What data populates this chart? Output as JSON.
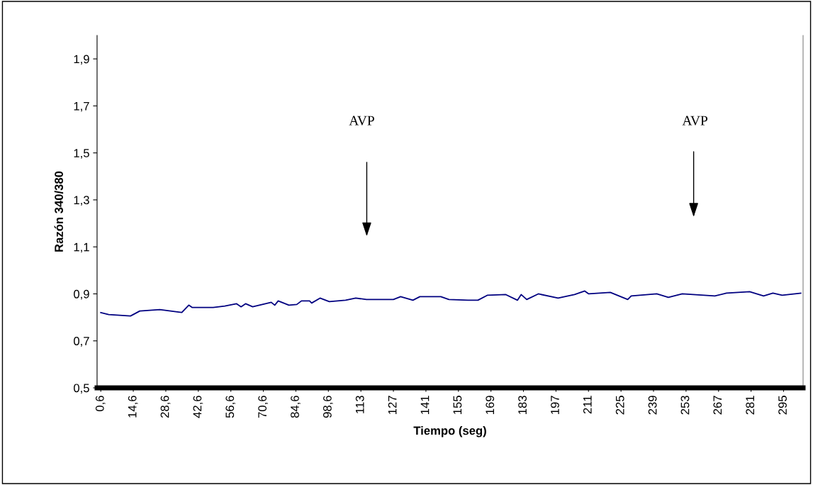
{
  "chart_data": {
    "type": "line",
    "xlabel": "Tiempo (seg)",
    "ylabel": "Razón 340/380",
    "x": [
      0.6,
      4,
      13.4,
      17.4,
      26,
      35.5,
      38.5,
      40,
      49,
      54,
      59,
      61,
      63,
      66,
      74,
      75.5,
      77,
      81.6,
      85,
      87,
      90.5,
      91.4,
      95,
      99,
      106,
      110.4,
      115,
      126.6,
      129.7,
      135,
      138,
      147,
      150.5,
      158.7,
      163,
      167,
      175,
      180,
      181.6,
      184,
      189,
      197.5,
      204.6,
      209,
      210.7,
      220,
      227.5,
      229,
      240,
      245,
      251,
      265,
      270,
      280,
      286,
      290,
      294,
      302
    ],
    "series": [
      {
        "color": "#000080",
        "values": [
          0.82,
          0.812,
          0.806,
          0.827,
          0.833,
          0.821,
          0.852,
          0.842,
          0.842,
          0.848,
          0.858,
          0.845,
          0.858,
          0.845,
          0.864,
          0.852,
          0.87,
          0.852,
          0.855,
          0.87,
          0.87,
          0.861,
          0.882,
          0.867,
          0.873,
          0.882,
          0.876,
          0.876,
          0.888,
          0.873,
          0.888,
          0.888,
          0.876,
          0.873,
          0.873,
          0.894,
          0.897,
          0.873,
          0.897,
          0.876,
          0.9,
          0.882,
          0.897,
          0.912,
          0.9,
          0.906,
          0.876,
          0.891,
          0.9,
          0.885,
          0.9,
          0.891,
          0.903,
          0.909,
          0.891,
          0.903,
          0.894,
          0.903
        ]
      }
    ],
    "xlim": [
      -1,
      303
    ],
    "ylim": [
      0.5,
      2.0
    ],
    "xticks": [
      {
        "value": 0.6,
        "label": "0,6"
      },
      {
        "value": 14.6,
        "label": "14,6"
      },
      {
        "value": 28.6,
        "label": "28,6"
      },
      {
        "value": 42.6,
        "label": "42,6"
      },
      {
        "value": 56.6,
        "label": "56,6"
      },
      {
        "value": 70.6,
        "label": "70,6"
      },
      {
        "value": 84.6,
        "label": "84,6"
      },
      {
        "value": 98.6,
        "label": "98,6"
      },
      {
        "value": 112.6,
        "label": "113"
      },
      {
        "value": 126.6,
        "label": "127"
      },
      {
        "value": 140.6,
        "label": "141"
      },
      {
        "value": 154.6,
        "label": "155"
      },
      {
        "value": 168.6,
        "label": "169"
      },
      {
        "value": 182.6,
        "label": "183"
      },
      {
        "value": 196.6,
        "label": "197"
      },
      {
        "value": 210.6,
        "label": "211"
      },
      {
        "value": 224.6,
        "label": "225"
      },
      {
        "value": 238.6,
        "label": "239"
      },
      {
        "value": 252.6,
        "label": "253"
      },
      {
        "value": 266.6,
        "label": "267"
      },
      {
        "value": 280.6,
        "label": "281"
      },
      {
        "value": 294.6,
        "label": "295"
      }
    ],
    "yticks": [
      {
        "value": 0.5,
        "label": "0,5"
      },
      {
        "value": 0.7,
        "label": "0,7"
      },
      {
        "value": 0.9,
        "label": "0,9"
      },
      {
        "value": 1.1,
        "label": "1,1"
      },
      {
        "value": 1.3,
        "label": "1,3"
      },
      {
        "value": 1.5,
        "label": "1,5"
      },
      {
        "value": 1.7,
        "label": "1,7"
      },
      {
        "value": 1.9,
        "label": "1,9"
      }
    ],
    "annotations": [
      "AVP",
      "AVP"
    ],
    "marker": "none",
    "line_style": "solid"
  }
}
